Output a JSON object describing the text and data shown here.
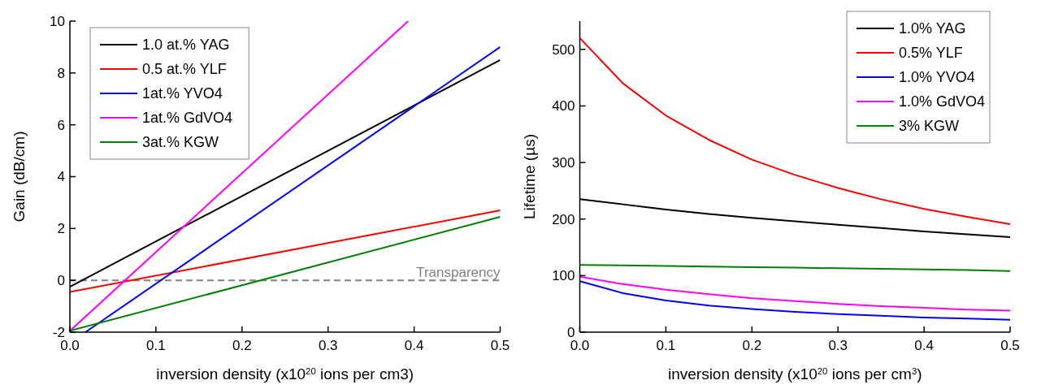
{
  "chart_data": [
    {
      "type": "line",
      "xlabel": "inversion density (x10$^{20}$ ions per cm3)",
      "ylabel": "Gain (dB/cm)",
      "xlim": [
        0,
        0.5
      ],
      "ylim": [
        -2,
        10
      ],
      "xticks": [
        {
          "value": 0,
          "label": "0.0"
        },
        0.1,
        0.2,
        0.3,
        0.4,
        0.5
      ],
      "yticks": [
        -2,
        0,
        2,
        4,
        6,
        8,
        10
      ],
      "legend": "top left",
      "grid": false,
      "series": [
        {
          "name": "1.0 at.% YAG",
          "color": "#000000",
          "x": [
            0,
            0.5
          ],
          "values": [
            -0.25,
            8.5
          ]
        },
        {
          "name": "0.5 at.% YLF",
          "color": "#ff0000",
          "x": [
            0,
            0.5
          ],
          "values": [
            -0.45,
            2.7
          ]
        },
        {
          "name": "1at.% YVO4",
          "color": "#0000ff",
          "x": [
            0.018,
            0.5
          ],
          "values": [
            -2,
            9.0
          ]
        },
        {
          "name": "1at.% GdVO4",
          "color": "#ff00ff",
          "x": [
            0,
            0.393
          ],
          "values": [
            -1.95,
            10
          ]
        },
        {
          "name": "3at.% KGW",
          "color": "#008000",
          "x": [
            0,
            0.5
          ],
          "values": [
            -1.95,
            2.45
          ]
        }
      ],
      "ref_lines": [
        {
          "axis": "y",
          "value": 0,
          "label": "Transparency",
          "color": "#808080",
          "line_style": "dashed"
        }
      ]
    },
    {
      "type": "line",
      "xlabel": "inversion density (x10$^{20}$ ions per cm$^{3}$)",
      "ylabel": "Lifetime (µs)",
      "xlim": [
        0,
        0.5
      ],
      "ylim": [
        0,
        550
      ],
      "xticks": [
        {
          "value": 0,
          "label": "0.0"
        },
        0.1,
        0.2,
        0.3,
        0.4,
        0.5
      ],
      "yticks": [
        0,
        100,
        200,
        300,
        400,
        500
      ],
      "legend": "top right",
      "grid": false,
      "x": [
        0,
        0.05,
        0.1,
        0.15,
        0.2,
        0.25,
        0.3,
        0.35,
        0.4,
        0.45,
        0.5
      ],
      "series": [
        {
          "name": "1.0% YAG",
          "color": "#000000",
          "values": [
            235,
            226,
            217,
            209,
            202,
            196,
            190,
            184,
            178,
            173,
            168
          ]
        },
        {
          "name": "0.5% YLF",
          "color": "#ff0000",
          "values": [
            520,
            440,
            383,
            340,
            305,
            278,
            255,
            235,
            218,
            204,
            191
          ]
        },
        {
          "name": "1.0% YVO4",
          "color": "#0000ff",
          "values": [
            90,
            69,
            56,
            47,
            41,
            36,
            32,
            29,
            26,
            24,
            22
          ]
        },
        {
          "name": "1.0% GdVO4",
          "color": "#ff00ff",
          "values": [
            98,
            85,
            75,
            67,
            60,
            55,
            50,
            46,
            43,
            40,
            38
          ]
        },
        {
          "name": "3% KGW",
          "color": "#008000",
          "values": [
            119,
            118,
            117,
            116,
            115,
            114,
            113,
            112,
            111,
            110,
            108
          ]
        }
      ]
    }
  ]
}
